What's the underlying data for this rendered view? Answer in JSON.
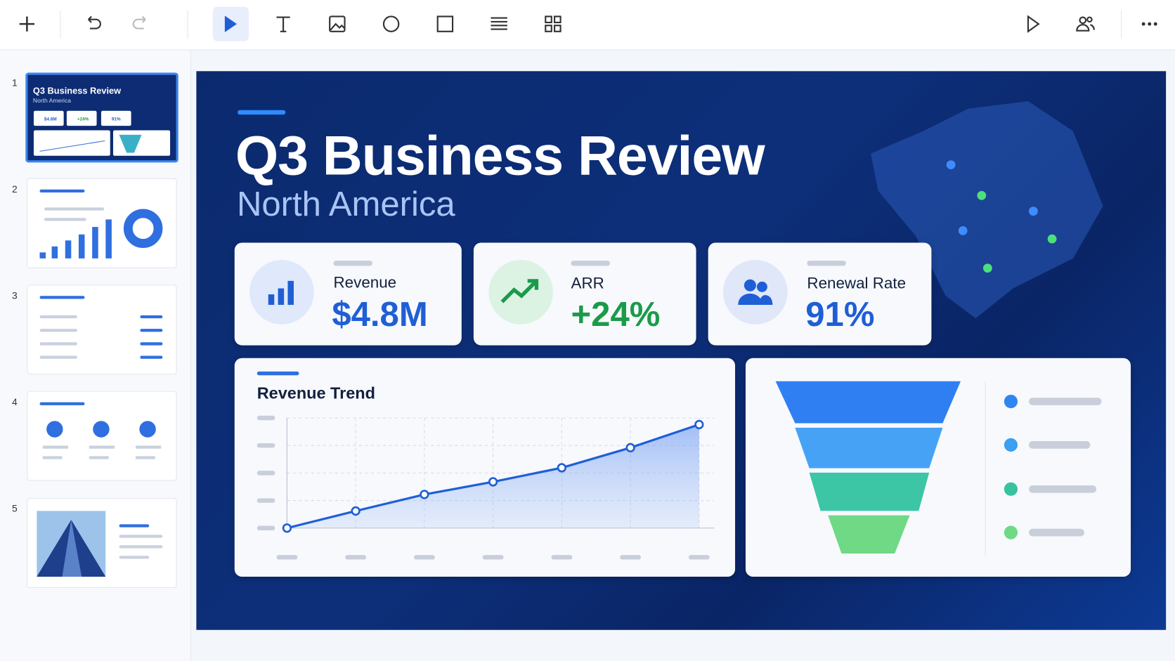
{
  "slide_numbers": [
    1,
    2,
    3,
    4,
    5
  ],
  "slide": {
    "title": "Q3 Business Review",
    "subtitle": "North America",
    "kpis": [
      {
        "label": "Revenue",
        "value": "$4.8M"
      },
      {
        "label": "ARR",
        "value": "+24%"
      },
      {
        "label": "Renewal Rate",
        "value": "91%"
      }
    ],
    "trend": {
      "title": "Revenue Trend",
      "values": [
        0,
        0.62,
        1.22,
        1.68,
        2.19,
        2.92,
        3.76
      ],
      "ylim": [
        0,
        4
      ]
    }
  }
}
